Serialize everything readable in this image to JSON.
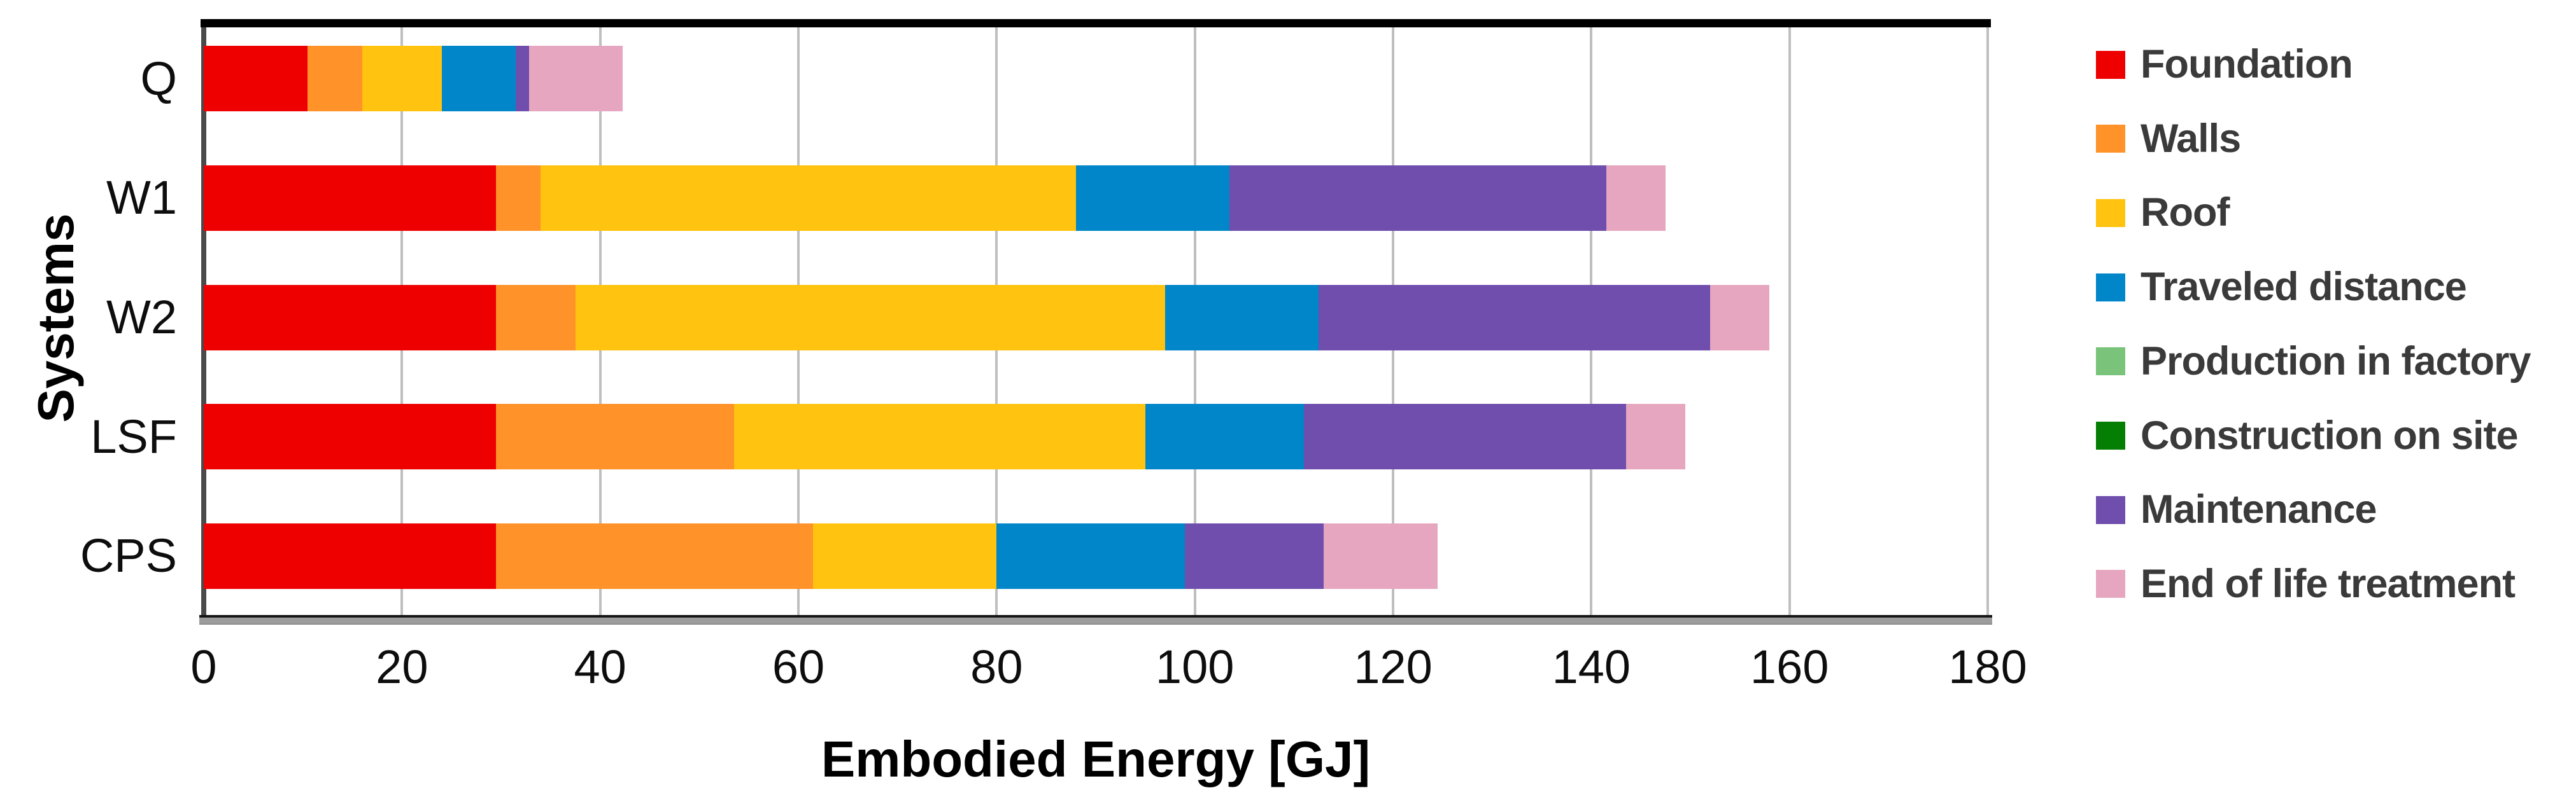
{
  "chart_data": {
    "type": "bar",
    "orientation": "horizontal",
    "stacked": true,
    "xlabel": "Embodied Energy [GJ]",
    "ylabel": "Systems",
    "xlim": [
      0,
      180
    ],
    "xticks": [
      0,
      20,
      40,
      60,
      80,
      100,
      120,
      140,
      160,
      180
    ],
    "grid": "vertical",
    "legend_position": "right",
    "categories": [
      "Q",
      "W1",
      "W2",
      "LSF",
      "CPS"
    ],
    "series": [
      {
        "name": "Foundation",
        "color": "#EE0000",
        "values": [
          10.5,
          29.5,
          29.5,
          29.5,
          29.5
        ]
      },
      {
        "name": "Walls",
        "color": "#FF9229",
        "values": [
          5.5,
          4.5,
          8,
          24,
          32
        ]
      },
      {
        "name": "Roof",
        "color": "#FFC310",
        "values": [
          8,
          54,
          59.5,
          41.5,
          18.5
        ]
      },
      {
        "name": "Traveled distance",
        "color": "#0086C9",
        "values": [
          7.5,
          15.5,
          15.5,
          16,
          19
        ]
      },
      {
        "name": "Production in factory",
        "color": "#7AC37A",
        "values": [
          0,
          0,
          0,
          0,
          0
        ]
      },
      {
        "name": "Construction on site",
        "color": "#047F04",
        "values": [
          0,
          0,
          0,
          0,
          0
        ]
      },
      {
        "name": "Maintenance",
        "color": "#6F4EAD",
        "values": [
          1.3,
          38,
          39.5,
          32.5,
          14
        ]
      },
      {
        "name": "End of life treatment",
        "color": "#E7A6BF",
        "values": [
          9.5,
          6,
          6,
          6,
          11.5
        ]
      }
    ],
    "totals": [
      42.3,
      147.5,
      158,
      149.5,
      124.5
    ],
    "colors": {
      "gridline": "#BFBFBF",
      "axis_line": "#4A4A4A",
      "axis_text": "#0d0d0d",
      "legend_text": "#3a3a3a",
      "plot_top_border": "#000000"
    }
  }
}
